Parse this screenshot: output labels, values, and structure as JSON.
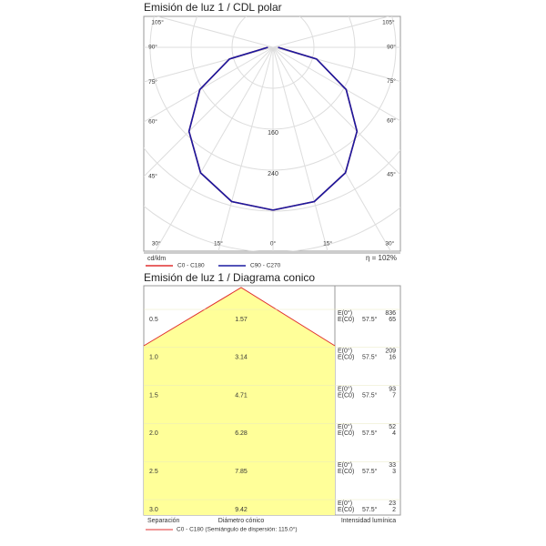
{
  "chart_data": [
    {
      "type": "polar",
      "title": "Emisión de luz 1 / CDL polar",
      "unit": "cd/klm",
      "efficiency": "η = 102%",
      "angle_ticks": [
        {
          "value": 0,
          "label": "0°"
        },
        {
          "value": 15,
          "label": "15°"
        },
        {
          "value": 30,
          "label": "30°"
        },
        {
          "value": 45,
          "label": "45°"
        },
        {
          "value": 60,
          "label": "60°"
        },
        {
          "value": 75,
          "label": "75°"
        },
        {
          "value": 90,
          "label": "90°"
        },
        {
          "value": 105,
          "label": "105°"
        }
      ],
      "rticks": [
        160,
        240
      ],
      "x": [
        0,
        15,
        30,
        45,
        60,
        75,
        90
      ],
      "series": [
        {
          "name": "C0 - C180",
          "color": "#e03030",
          "values": [
            318,
            312,
            283,
            232,
            165,
            88,
            10
          ]
        },
        {
          "name": "C90 - C270",
          "color": "#1a1aa0",
          "values": [
            318,
            312,
            283,
            232,
            165,
            88,
            10
          ]
        }
      ]
    },
    {
      "type": "cone",
      "title": "Emisión de luz 1 / Diagrama conico",
      "e_labels": [
        "E(0°)",
        "E(C0)"
      ],
      "angle": {
        "value": 57.5,
        "label": "57.5°"
      },
      "rows": [
        {
          "separation": 0.5,
          "diameter": 1.57,
          "e0": 836,
          "ec0": 65
        },
        {
          "separation": {
            "value": 1,
            "label": "1.0"
          },
          "diameter": 3.14,
          "e0": 209,
          "ec0": 16
        },
        {
          "separation": 1.5,
          "diameter": 4.71,
          "e0": 93,
          "ec0": 7
        },
        {
          "separation": {
            "value": 2,
            "label": "2.0"
          },
          "diameter": 6.28,
          "e0": 52,
          "ec0": 4
        },
        {
          "separation": 2.5,
          "diameter": 7.85,
          "e0": 33,
          "ec0": 3
        },
        {
          "separation": {
            "value": 3,
            "label": "3.0"
          },
          "diameter": 9.42,
          "e0": 23,
          "ec0": 2
        }
      ],
      "x_label": "Separación",
      "diameter_label": "Diámetro cónico",
      "intensity_label": "Intensidad lumínica",
      "legend": "C0 - C180 (Semiángulo de dispersión: 115.0°)",
      "color": "#ffff99",
      "edge_color": "#e03030"
    }
  ]
}
